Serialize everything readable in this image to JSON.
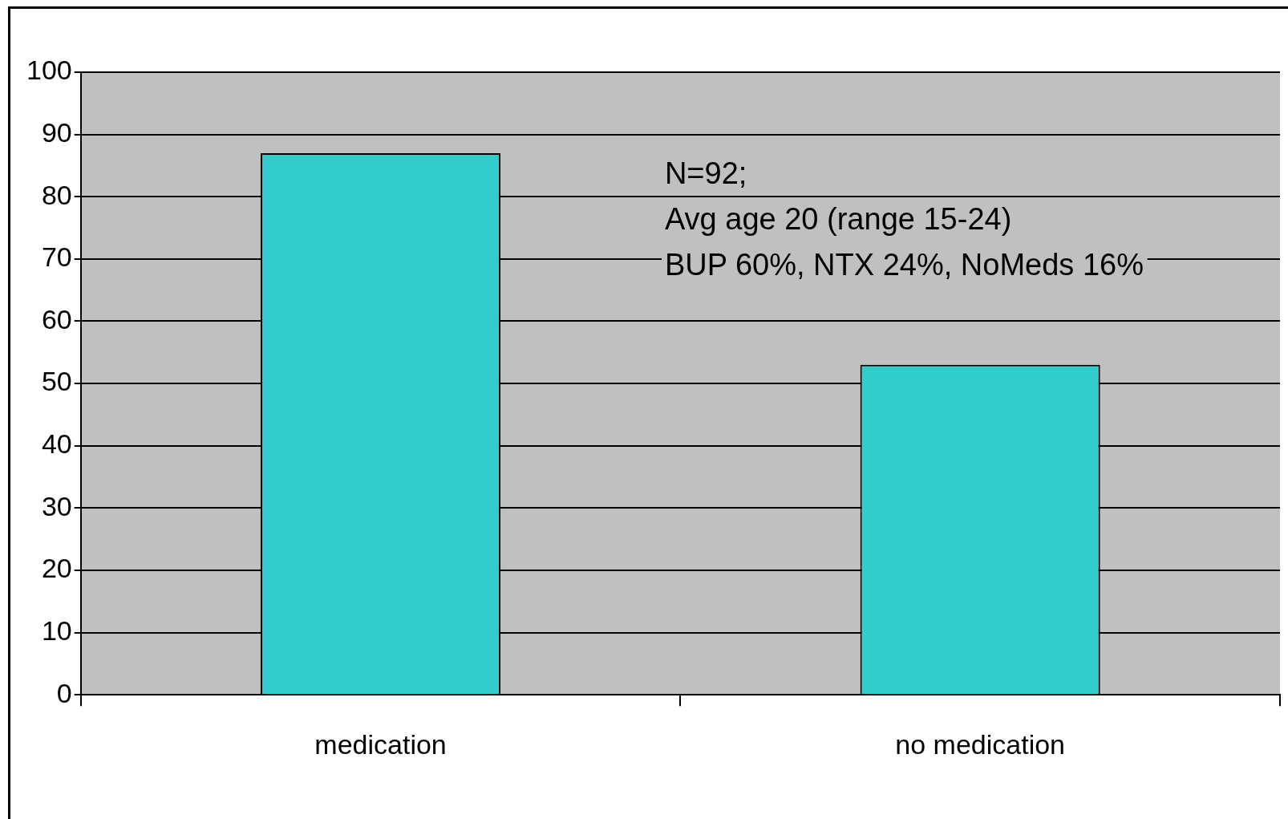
{
  "chart_data": {
    "type": "bar",
    "categories": [
      "medication",
      "no medication"
    ],
    "values": [
      87,
      53
    ],
    "color": "#33cccc",
    "ylim": [
      0,
      100
    ],
    "yticks": [
      0,
      10,
      20,
      30,
      40,
      50,
      60,
      70,
      80,
      90,
      100
    ],
    "grid": "y",
    "legend": false,
    "annotations": [
      "N=92;",
      "Avg age 20 (range 15-24)",
      "BUP 60%, NTX 24%, NoMeds 16%"
    ]
  }
}
